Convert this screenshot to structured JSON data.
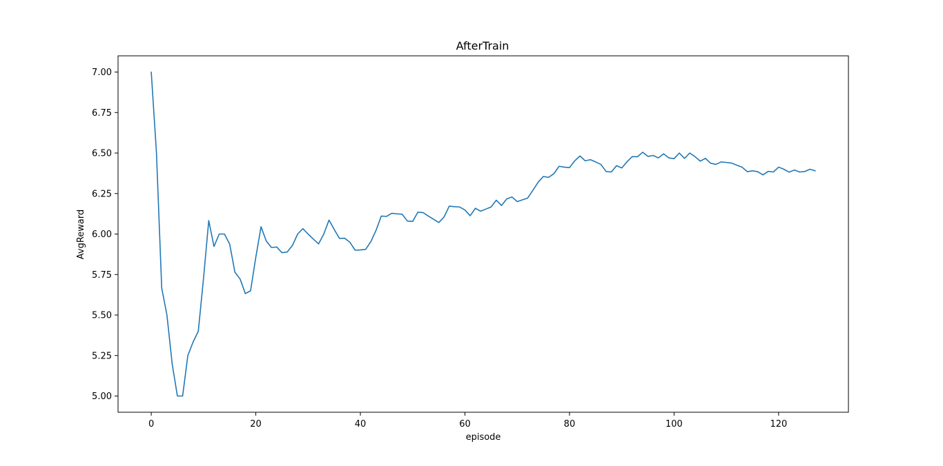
{
  "chart_data": {
    "type": "line",
    "title": "AfterTrain",
    "xlabel": "episode",
    "ylabel": "AvgReward",
    "xlim": [
      -6.35,
      133.35
    ],
    "ylim": [
      4.9,
      7.1
    ],
    "xticks": [
      0,
      20,
      40,
      60,
      80,
      100,
      120
    ],
    "xtick_labels": [
      "0",
      "20",
      "40",
      "60",
      "80",
      "100",
      "120"
    ],
    "yticks": [
      5.0,
      5.25,
      5.5,
      5.75,
      6.0,
      6.25,
      6.5,
      6.75,
      7.0
    ],
    "ytick_labels": [
      "5.00",
      "5.25",
      "5.50",
      "5.75",
      "6.00",
      "6.25",
      "6.50",
      "6.75",
      "7.00"
    ],
    "grid": false,
    "legend": false,
    "series": [
      {
        "color": "#1f77b4",
        "x": [
          0,
          1,
          2,
          3,
          4,
          5,
          6,
          7,
          8,
          9,
          10,
          11,
          12,
          13,
          14,
          15,
          16,
          17,
          18,
          19,
          20,
          21,
          22,
          23,
          24,
          25,
          26,
          27,
          28,
          29,
          30,
          31,
          32,
          33,
          34,
          35,
          36,
          37,
          38,
          39,
          40,
          41,
          42,
          43,
          44,
          45,
          46,
          47,
          48,
          49,
          50,
          51,
          52,
          53,
          54,
          55,
          56,
          57,
          58,
          59,
          60,
          61,
          62,
          63,
          64,
          65,
          66,
          67,
          68,
          69,
          70,
          71,
          72,
          73,
          74,
          75,
          76,
          77,
          78,
          79,
          80,
          81,
          82,
          83,
          84,
          85,
          86,
          87,
          88,
          89,
          90,
          91,
          92,
          93,
          94,
          95,
          96,
          97,
          98,
          99,
          100,
          101,
          102,
          103,
          104,
          105,
          106,
          107,
          108,
          109,
          110,
          111,
          112,
          113,
          114,
          115,
          116,
          117,
          118,
          119,
          120,
          121,
          122,
          123,
          124,
          125,
          126,
          127
        ],
        "y": [
          7.0,
          6.5,
          5.667,
          5.5,
          5.2,
          5.0,
          5.0,
          5.25,
          5.333,
          5.4,
          5.727,
          6.083,
          5.923,
          6.0,
          6.0,
          5.938,
          5.765,
          5.722,
          5.632,
          5.65,
          5.857,
          6.045,
          5.957,
          5.917,
          5.92,
          5.885,
          5.889,
          5.929,
          6.0,
          6.033,
          6.0,
          5.969,
          5.939,
          6.0,
          6.086,
          6.028,
          5.973,
          5.974,
          5.949,
          5.9,
          5.902,
          5.905,
          5.953,
          6.023,
          6.111,
          6.109,
          6.128,
          6.125,
          6.122,
          6.08,
          6.078,
          6.135,
          6.132,
          6.111,
          6.091,
          6.071,
          6.105,
          6.172,
          6.169,
          6.167,
          6.148,
          6.113,
          6.159,
          6.141,
          6.154,
          6.167,
          6.209,
          6.176,
          6.217,
          6.229,
          6.2,
          6.211,
          6.222,
          6.27,
          6.32,
          6.355,
          6.35,
          6.372,
          6.418,
          6.413,
          6.41,
          6.452,
          6.482,
          6.452,
          6.459,
          6.445,
          6.43,
          6.386,
          6.383,
          6.422,
          6.408,
          6.446,
          6.478,
          6.477,
          6.505,
          6.479,
          6.485,
          6.47,
          6.495,
          6.47,
          6.465,
          6.5,
          6.467,
          6.5,
          6.478,
          6.45,
          6.467,
          6.437,
          6.43,
          6.445,
          6.442,
          6.438,
          6.425,
          6.413,
          6.385,
          6.39,
          6.385,
          6.365,
          6.387,
          6.383,
          6.413,
          6.4,
          6.382,
          6.395,
          6.383,
          6.386,
          6.4,
          6.39
        ]
      }
    ]
  }
}
